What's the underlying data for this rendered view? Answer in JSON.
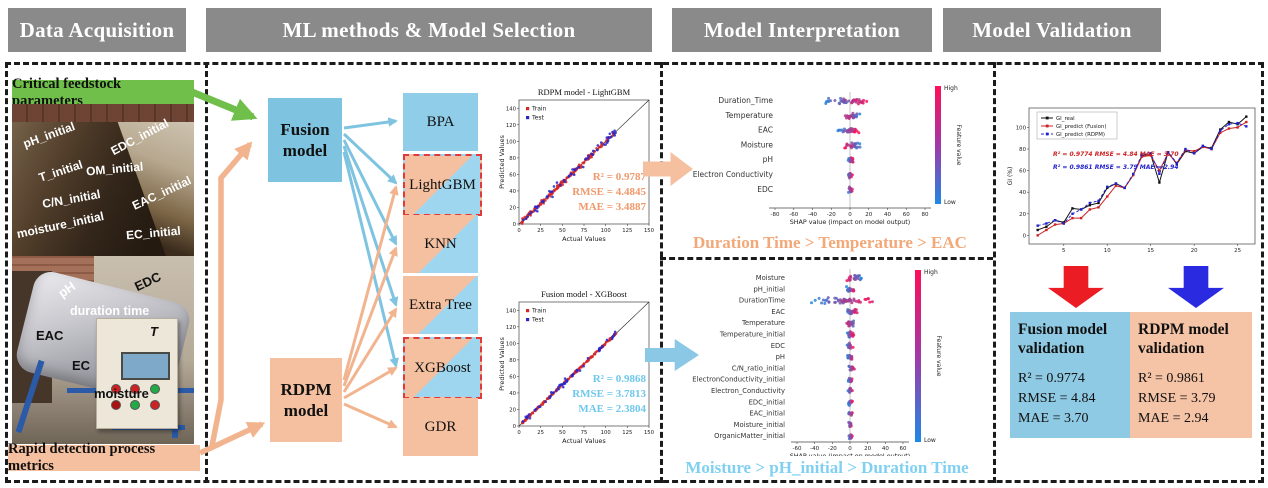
{
  "headers": {
    "h1": "Data Acquisition",
    "h2": "ML methods & Model Selection",
    "h3": "Model Interpretation",
    "h4": "Model Validation"
  },
  "panel1": {
    "top_banner": "Critical feedstock parameters",
    "bottom_banner": "Rapid detection process metrics",
    "photo1_labels": [
      "pH_initial",
      "EDC_initial",
      "T_initial",
      "OM_initial",
      "C/N_initial",
      "EAC_initial",
      "moisture_initial",
      "EC_initial"
    ],
    "photo2_labels": [
      "pH",
      "EDC",
      "duration time",
      "EAC",
      "T",
      "EC",
      "moisture"
    ]
  },
  "panel2": {
    "fusion_label": "Fusion model",
    "rdpm_label": "RDPM model",
    "methods": [
      {
        "label": "BPA",
        "style": "blue",
        "selected": false
      },
      {
        "label": "LightGBM",
        "style": "split",
        "selected": true
      },
      {
        "label": "KNN",
        "style": "split",
        "selected": false
      },
      {
        "label": "Extra Tree",
        "style": "split",
        "selected": false
      },
      {
        "label": "XGBoost",
        "style": "split",
        "selected": true
      },
      {
        "label": "GDR",
        "style": "salmon",
        "selected": false
      }
    ]
  },
  "colors": {
    "header_gray": "#8a8a8a",
    "green": "#6FBF4A",
    "blue": "#7EC4E1",
    "salmon": "#F5C0A0",
    "stats_orange": "#F0996B",
    "stats_blue": "#6EC8EC",
    "shap_high": "#ff0d57",
    "shap_low": "#1e88e5",
    "red_arrow": "#EC1C24",
    "blue_arrow": "#2A2AE0",
    "selected_border": "#E03A3A"
  },
  "chart_data": [
    {
      "type": "scatter",
      "id": "scatter_rdpm",
      "title": "RDPM model - LightGBM",
      "xlabel": "Actual Values",
      "ylabel": "Predicted Values",
      "xlim": [
        0,
        150
      ],
      "ylim": [
        0,
        150
      ],
      "xticks": [
        0,
        25,
        50,
        75,
        100,
        125,
        150
      ],
      "yticks": [
        0,
        20,
        40,
        60,
        80,
        100,
        120,
        140
      ],
      "legend": [
        {
          "name": "Train",
          "color": "#d62728"
        },
        {
          "name": "Test",
          "color": "#2727c8"
        }
      ],
      "identity_line": true,
      "data_range": [
        3,
        112
      ],
      "n_train": 170,
      "noise_train": 2.6,
      "n_test": 60,
      "noise_test": 5.5,
      "seed": 11,
      "stats": [
        "R² = 0.9787",
        "RMSE = 4.4845",
        "MAE  = 3.4887"
      ],
      "stats_color": "#F0996B"
    },
    {
      "type": "scatter",
      "id": "scatter_fusion",
      "title": "Fusion model - XGBoost",
      "xlabel": "Actual Values",
      "ylabel": "Predicted Values",
      "xlim": [
        0,
        150
      ],
      "ylim": [
        0,
        150
      ],
      "xticks": [
        0,
        25,
        50,
        75,
        100,
        125,
        150
      ],
      "yticks": [
        0,
        20,
        40,
        60,
        80,
        100,
        120,
        140
      ],
      "legend": [
        {
          "name": "Train",
          "color": "#d62728"
        },
        {
          "name": "Test",
          "color": "#2727c8"
        }
      ],
      "identity_line": true,
      "data_range": [
        3,
        112
      ],
      "n_train": 170,
      "noise_train": 1.1,
      "n_test": 60,
      "noise_test": 3.5,
      "seed": 23,
      "stats": [
        "R² = 0.9868",
        "RMSE = 3.7813",
        "MAE = 2.3804"
      ],
      "stats_color": "#6EC8EC"
    },
    {
      "type": "shap_beeswarm",
      "id": "shap_top",
      "xlabel": "SHAP value (impact on model output)",
      "xlim": [
        -80,
        80
      ],
      "xticks": [
        -80,
        -60,
        -40,
        -20,
        0,
        20,
        40,
        60,
        80
      ],
      "colorbar": {
        "high": "High",
        "low": "Low",
        "label": "Feature value"
      },
      "features": [
        {
          "name": "Duration_Time",
          "lo": -27,
          "hi": 22,
          "n": 46,
          "invert": false
        },
        {
          "name": "Temperature",
          "lo": -8,
          "hi": 12,
          "n": 28,
          "invert": true
        },
        {
          "name": "EAC",
          "lo": -13,
          "hi": 10,
          "n": 30,
          "invert": false
        },
        {
          "name": "Moisture",
          "lo": -6,
          "hi": 12,
          "n": 26,
          "invert": true
        },
        {
          "name": "pH",
          "lo": -3,
          "hi": 4,
          "n": 18,
          "invert": false
        },
        {
          "name": "Electron Conductivity",
          "lo": -3,
          "hi": 3,
          "n": 16,
          "invert": false
        },
        {
          "name": "EDC",
          "lo": -3,
          "hi": 3,
          "n": 16,
          "invert": false
        }
      ],
      "seed": 7,
      "summary": "Duration Time > Temperature > EAC",
      "summary_color": "#F2A878"
    },
    {
      "type": "shap_beeswarm",
      "id": "shap_bottom",
      "xlabel": "SHAP value (impact on model output)",
      "xlim": [
        -60,
        60
      ],
      "xticks": [
        -60,
        -40,
        -20,
        0,
        20,
        40,
        60
      ],
      "colorbar": {
        "high": "High",
        "low": "Low",
        "label": "Feature value"
      },
      "features": [
        {
          "name": "Moisture",
          "lo": -4,
          "hi": 15,
          "n": 24,
          "invert": true
        },
        {
          "name": "pH_initial",
          "lo": -4,
          "hi": 5,
          "n": 20,
          "invert": false
        },
        {
          "name": "DurationTime",
          "lo": -47,
          "hi": 33,
          "n": 55,
          "invert": false
        },
        {
          "name": "EAC",
          "lo": -5,
          "hi": 9,
          "n": 22,
          "invert": false
        },
        {
          "name": "Temperature",
          "lo": -5,
          "hi": 7,
          "n": 20,
          "invert": true
        },
        {
          "name": "Temperature_initial",
          "lo": -5,
          "hi": 5,
          "n": 18,
          "invert": false
        },
        {
          "name": "EDC",
          "lo": -4,
          "hi": 4,
          "n": 16,
          "invert": false
        },
        {
          "name": "pH",
          "lo": -3,
          "hi": 4,
          "n": 16,
          "invert": false
        },
        {
          "name": "C/N_ratio_initial",
          "lo": -4,
          "hi": 6,
          "n": 16,
          "invert": false
        },
        {
          "name": "ElectronConductivity_initial",
          "lo": -3,
          "hi": 3,
          "n": 14,
          "invert": false
        },
        {
          "name": "Electron_Conductivity",
          "lo": -3,
          "hi": 3,
          "n": 14,
          "invert": false
        },
        {
          "name": "EDC_initial",
          "lo": -2,
          "hi": 3,
          "n": 12,
          "invert": false
        },
        {
          "name": "EAC_initial",
          "lo": -2,
          "hi": 3,
          "n": 12,
          "invert": false
        },
        {
          "name": "Moisture_initial",
          "lo": -2,
          "hi": 2,
          "n": 12,
          "invert": false
        },
        {
          "name": "OrganicMatter_initial",
          "lo": -2,
          "hi": 3,
          "n": 12,
          "invert": false
        }
      ],
      "seed": 19,
      "summary": "Moisture > pH_initial  > Duration Time",
      "summary_color": "#7FD0F2"
    },
    {
      "type": "line",
      "id": "validation_lines",
      "ylabel": "GI (%)",
      "xticks": [
        5,
        10,
        15,
        20,
        25
      ],
      "yticks": [
        0,
        20,
        40,
        60,
        80,
        100
      ],
      "xlim": [
        1,
        27
      ],
      "ylim": [
        -8,
        118
      ],
      "x": [
        2,
        3,
        4,
        5,
        6,
        7,
        8,
        9,
        10,
        11,
        12,
        13,
        14,
        15,
        16,
        17,
        18,
        19,
        20,
        21,
        22,
        23,
        24,
        25,
        26
      ],
      "series": [
        {
          "name": "GI_real",
          "color": "#111111",
          "dash": "",
          "values": [
            5,
            8,
            14,
            12,
            25,
            24,
            28,
            30,
            44,
            48,
            44,
            56,
            74,
            75,
            49,
            77,
            66,
            78,
            76,
            82,
            81,
            98,
            105,
            103,
            110
          ]
        },
        {
          "name": "GI_predict (Fusion)",
          "color": "#cc2222",
          "dash": "",
          "values": [
            0,
            5,
            10,
            11,
            16,
            16,
            24,
            26,
            36,
            46,
            44,
            56,
            73,
            74,
            60,
            76,
            67,
            79,
            78,
            82,
            80,
            95,
            99,
            100,
            105
          ]
        },
        {
          "name": "GI_predict (RDPM)",
          "color": "#2222cc",
          "dash": "3,2",
          "values": [
            9,
            11,
            14,
            11,
            20,
            24,
            30,
            32,
            45,
            48,
            44,
            57,
            75,
            76,
            57,
            77,
            67,
            80,
            76,
            83,
            80,
            97,
            103,
            104,
            101
          ]
        }
      ],
      "annotations": [
        {
          "text": "R² = 0.9774  RMSE = 4.84  MAE = 3.70",
          "color": "#cc2222"
        },
        {
          "text": "R² = 0.9861  RMSE = 3.79  MAE = 2.94",
          "color": "#2222cc"
        }
      ]
    }
  ],
  "panel4": {
    "fusion_box": {
      "title": "Fusion model validation",
      "lines": [
        "R² = 0.9774",
        "RMSE = 4.84",
        "MAE = 3.70"
      ]
    },
    "rdpm_box": {
      "title": "RDPM model validation",
      "lines": [
        "R² = 0.9861",
        "RMSE = 3.79",
        "MAE = 2.94"
      ]
    }
  }
}
